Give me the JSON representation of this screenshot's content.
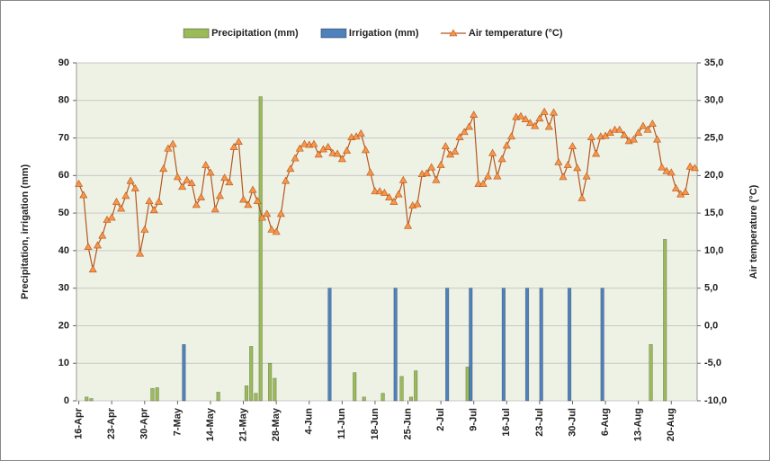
{
  "chart_data": {
    "type": "combo",
    "categories": [
      "16-Apr",
      null,
      null,
      null,
      null,
      null,
      null,
      "23-Apr",
      null,
      null,
      null,
      null,
      null,
      null,
      "30-Apr",
      null,
      null,
      null,
      null,
      null,
      null,
      "7-May",
      null,
      null,
      null,
      null,
      null,
      null,
      "14-May",
      null,
      null,
      null,
      null,
      null,
      null,
      "21-May",
      null,
      null,
      null,
      null,
      null,
      null,
      "28-May",
      null,
      null,
      null,
      null,
      null,
      null,
      "4-Jun",
      null,
      null,
      null,
      null,
      null,
      null,
      "11-Jun",
      null,
      null,
      null,
      null,
      null,
      null,
      "18-Jun",
      null,
      null,
      null,
      null,
      null,
      null,
      "25-Jun",
      null,
      null,
      null,
      null,
      null,
      null,
      "2-Jul",
      null,
      null,
      null,
      null,
      null,
      null,
      "9-Jul",
      null,
      null,
      null,
      null,
      null,
      null,
      "16-Jul",
      null,
      null,
      null,
      null,
      null,
      null,
      "23-Jul",
      null,
      null,
      null,
      null,
      null,
      null,
      "30-Jul",
      null,
      null,
      null,
      null,
      null,
      null,
      "6-Aug",
      null,
      null,
      null,
      null,
      null,
      null,
      "13-Aug",
      null,
      null,
      null,
      null,
      null,
      null,
      "20-Aug",
      null,
      null,
      null,
      null,
      null
    ],
    "series": [
      {
        "name": "Precipitation (mm)",
        "type": "bar",
        "color": "#9bbb59",
        "values": [
          null,
          null,
          1,
          0.6,
          null,
          null,
          null,
          null,
          null,
          null,
          null,
          null,
          null,
          null,
          null,
          null,
          3.3,
          3.5,
          null,
          null,
          null,
          null,
          null,
          null,
          null,
          null,
          null,
          null,
          null,
          null,
          2.3,
          null,
          null,
          null,
          null,
          null,
          4,
          14.5,
          2,
          81,
          null,
          10,
          6,
          null,
          null,
          null,
          null,
          null,
          null,
          null,
          null,
          null,
          null,
          null,
          null,
          null,
          null,
          null,
          null,
          7.5,
          null,
          1,
          null,
          null,
          null,
          2,
          null,
          null,
          null,
          6.5,
          null,
          1,
          8,
          null,
          null,
          null,
          null,
          null,
          null,
          null,
          null,
          null,
          null,
          9,
          null,
          null,
          null,
          null,
          null,
          null,
          null,
          null,
          null,
          null,
          null,
          null,
          null,
          null,
          null,
          null,
          null,
          null,
          null,
          null,
          null,
          null,
          null,
          null,
          null,
          null,
          null,
          null,
          null,
          null,
          null,
          null,
          null,
          null,
          null,
          null,
          null,
          null,
          15,
          null,
          null,
          43,
          null,
          null,
          null,
          null,
          null,
          null
        ]
      },
      {
        "name": "Irrigation (mm)",
        "type": "bar",
        "color": "#4f81bd",
        "values": [
          null,
          null,
          null,
          null,
          null,
          null,
          null,
          null,
          null,
          null,
          null,
          null,
          null,
          null,
          null,
          null,
          null,
          null,
          null,
          null,
          null,
          null,
          15,
          null,
          null,
          null,
          null,
          null,
          null,
          null,
          null,
          null,
          null,
          null,
          null,
          null,
          null,
          null,
          null,
          null,
          null,
          null,
          null,
          null,
          null,
          null,
          null,
          null,
          null,
          null,
          null,
          null,
          null,
          30,
          null,
          null,
          null,
          null,
          null,
          null,
          null,
          null,
          null,
          null,
          null,
          null,
          null,
          30,
          null,
          null,
          null,
          null,
          null,
          null,
          null,
          null,
          null,
          null,
          30,
          null,
          null,
          null,
          null,
          30,
          null,
          null,
          null,
          null,
          null,
          null,
          30,
          null,
          null,
          null,
          null,
          30,
          null,
          null,
          30,
          null,
          null,
          null,
          null,
          null,
          30,
          null,
          null,
          null,
          null,
          null,
          null,
          30,
          null,
          null,
          null,
          null,
          null,
          null,
          null,
          null,
          null,
          null,
          null,
          null,
          null,
          null,
          null,
          null,
          null,
          null,
          null,
          null
        ]
      },
      {
        "name": "Air temperature (°C)",
        "type": "line",
        "axis": "y2",
        "color": "#b5561f",
        "marker_color": "#f79646",
        "values": [
          18.9,
          17.4,
          10.5,
          7.5,
          10.7,
          12.0,
          14.1,
          14.4,
          16.5,
          15.6,
          17.3,
          19.3,
          18.3,
          9.6,
          12.8,
          16.6,
          15.4,
          16.5,
          20.9,
          23.6,
          24.2,
          19.8,
          18.5,
          19.4,
          19.0,
          16.1,
          17.1,
          21.4,
          20.4,
          15.5,
          17.3,
          19.7,
          19.1,
          23.8,
          24.5,
          16.8,
          16.1,
          18.1,
          16.6,
          14.4,
          14.9,
          12.8,
          12.5,
          14.9,
          19.3,
          20.9,
          22.3,
          23.6,
          24.2,
          24.1,
          24.2,
          22.8,
          23.5,
          23.8,
          23.0,
          22.9,
          22.2,
          23.3,
          25.1,
          25.2,
          25.6,
          23.4,
          20.4,
          17.9,
          17.9,
          17.7,
          17.1,
          16.5,
          17.5,
          19.4,
          13.3,
          16.0,
          16.2,
          20.2,
          20.3,
          21.1,
          19.4,
          21.4,
          23.9,
          22.8,
          23.2,
          25.1,
          25.8,
          26.5,
          28.1,
          18.9,
          18.9,
          19.9,
          23.0,
          19.9,
          22.2,
          24.0,
          25.2,
          27.8,
          27.9,
          27.5,
          27.0,
          26.6,
          27.6,
          28.5,
          26.5,
          28.4,
          21.8,
          19.8,
          21.4,
          23.9,
          21.0,
          17.0,
          19.9,
          25.1,
          22.9,
          25.2,
          25.3,
          25.7,
          26.1,
          26.1,
          25.4,
          24.6,
          24.8,
          25.7,
          26.6,
          26.1,
          26.9,
          24.8,
          21.1,
          20.6,
          20.4,
          18.3,
          17.5,
          17.8,
          21.2,
          21.0
        ]
      }
    ],
    "ylabel": "Precipitation, irrigation (mm)",
    "y2label": "Air temperature (°C)",
    "ylim": [
      0,
      90
    ],
    "yticks": [
      0,
      10,
      20,
      30,
      40,
      50,
      60,
      70,
      80,
      90
    ],
    "y2lim": [
      -10,
      35
    ],
    "y2ticks": [
      {
        "value": -10,
        "label": "-10,0"
      },
      {
        "value": -5,
        "label": "-5,0"
      },
      {
        "value": 0,
        "label": "0,0"
      },
      {
        "value": 5,
        "label": "5,0"
      },
      {
        "value": 10,
        "label": "10,0"
      },
      {
        "value": 15,
        "label": "15,0"
      },
      {
        "value": 20,
        "label": "20,0"
      },
      {
        "value": 25,
        "label": "25,0"
      },
      {
        "value": 30,
        "label": "30,0"
      },
      {
        "value": 35,
        "label": "35,0"
      }
    ],
    "grid": true,
    "legend": "top"
  }
}
